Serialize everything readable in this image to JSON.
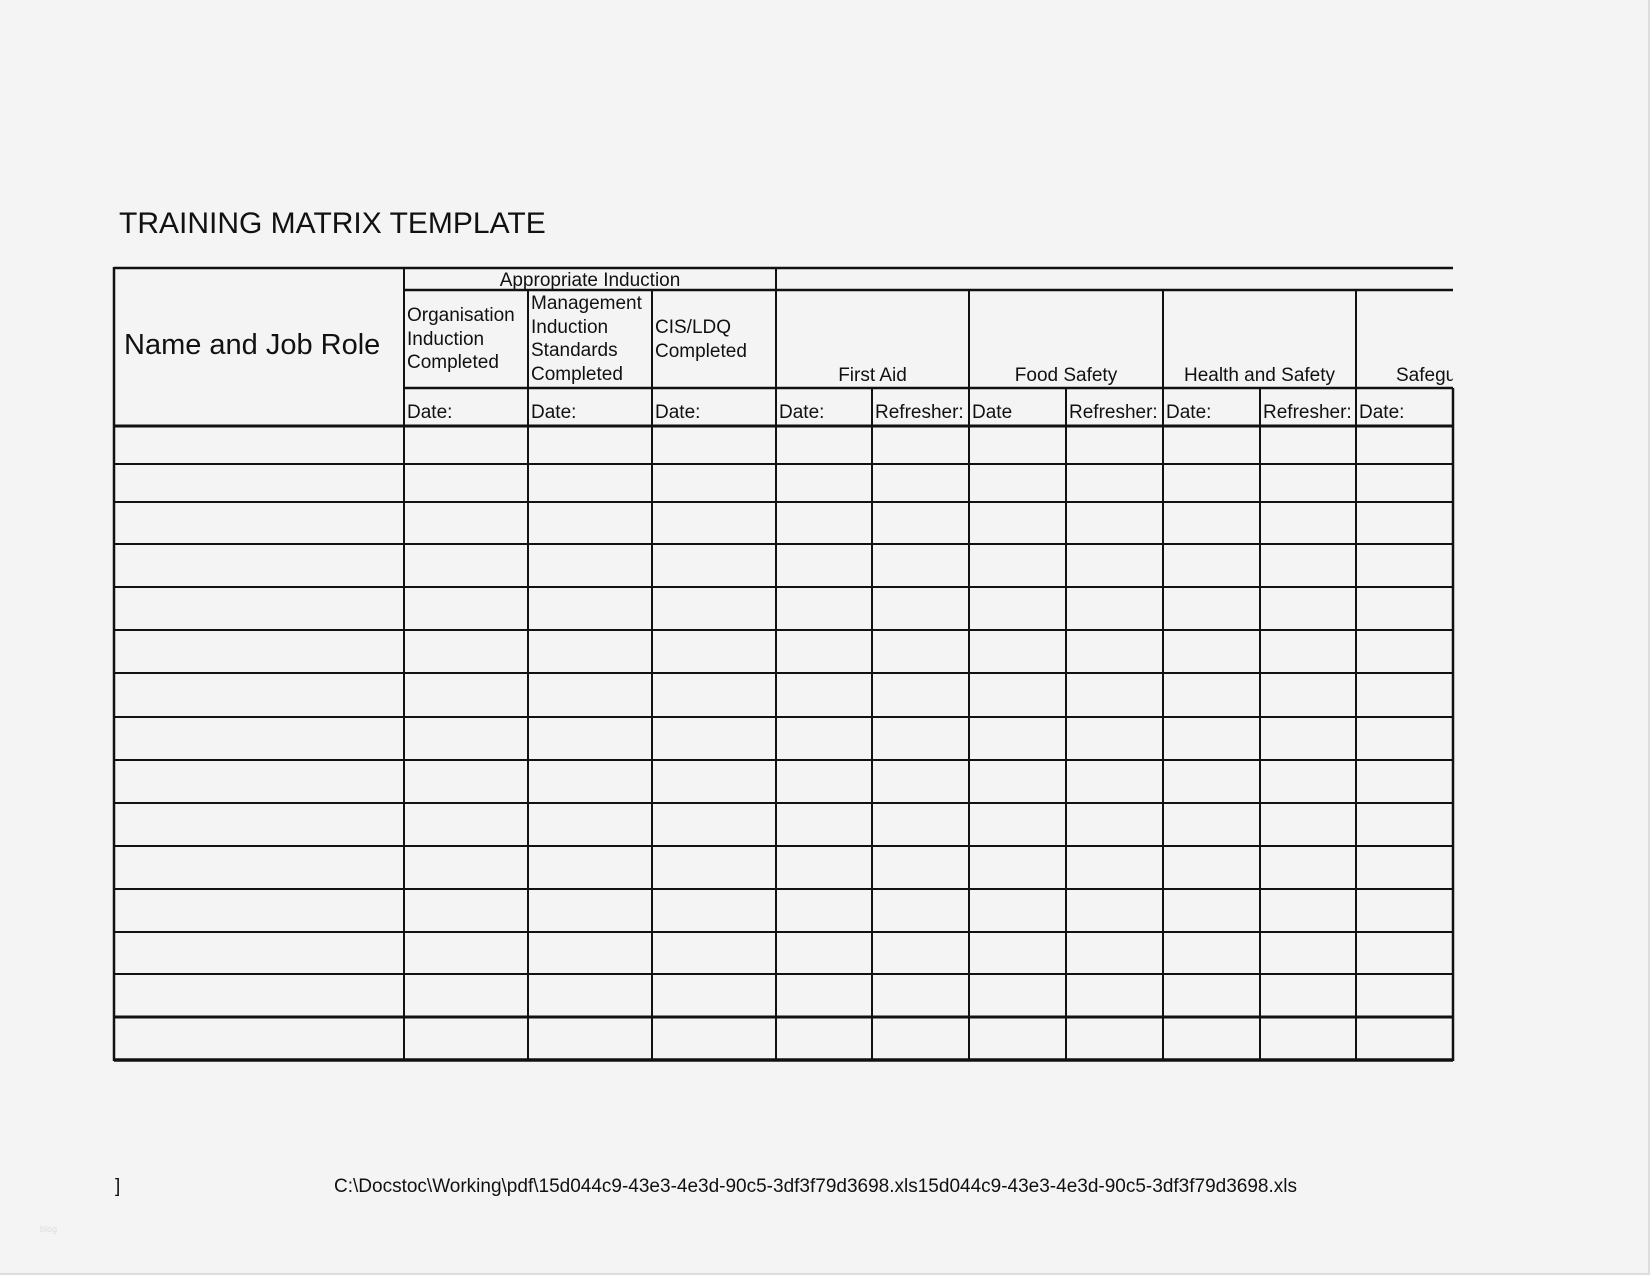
{
  "title": "TRAINING MATRIX TEMPLATE",
  "table": {
    "name_header": "Name and Job Role",
    "group_header": "Appropriate Induction",
    "columns": [
      {
        "label": "Organisation Induction Completed",
        "lines": [
          "Organisation",
          "Induction",
          "Completed"
        ],
        "sub": [
          "Date:"
        ]
      },
      {
        "label": "Management Induction Standards Completed",
        "lines": [
          "Management",
          "Induction",
          "Standards",
          "Completed"
        ],
        "sub": [
          "Date:"
        ]
      },
      {
        "label": "CIS/LDQ Completed",
        "lines": [
          "CIS/LDQ",
          "Completed"
        ],
        "sub": [
          "Date:"
        ]
      },
      {
        "label": "First Aid",
        "sub": [
          "Date:",
          "Refresher:"
        ]
      },
      {
        "label": "Food Safety",
        "sub": [
          "Date",
          "Refresher:"
        ]
      },
      {
        "label": "Health and Safety",
        "sub": [
          "Date:",
          "Refresher:"
        ]
      },
      {
        "label": "Safegu",
        "sub": [
          "Date:"
        ]
      }
    ]
  },
  "footer": {
    "bracket": "]",
    "path": "C:\\Docstoc\\Working\\pdf\\15d044c9-43e3-4e3d-90c5-3df3f79d3698.xls15d044c9-43e3-4e3d-90c5-3df3f79d3698.xls"
  },
  "watermark": "blog"
}
